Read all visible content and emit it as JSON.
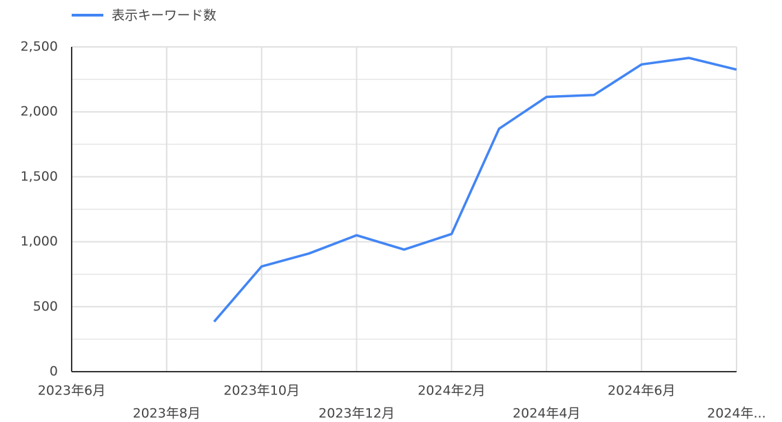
{
  "chart_data": {
    "type": "line",
    "categories": [
      "2023年6月",
      null,
      "2023年8月",
      null,
      "2023年10月",
      null,
      "2023年12月",
      null,
      "2024年2月",
      null,
      "2024年4月",
      null,
      "2024年6月",
      null,
      "2024年..."
    ],
    "series": [
      {
        "name": "表示キーワード数",
        "color": "#4285f4",
        "values": [
          null,
          null,
          null,
          385,
          810,
          910,
          1050,
          940,
          1060,
          1870,
          2115,
          2130,
          2365,
          2415,
          2325
        ]
      }
    ],
    "ylim": [
      0,
      2500
    ],
    "yticks": [
      0,
      500,
      {
        "value": 1000,
        "label": "1,000"
      },
      {
        "value": 1500,
        "label": "1,500"
      },
      {
        "value": 2000,
        "label": "2,000"
      },
      {
        "value": 2500,
        "label": "2,500"
      }
    ],
    "y_minor_ticks": [
      250,
      750,
      1250,
      1750,
      2250
    ],
    "grid": true,
    "legend": "top-left"
  }
}
